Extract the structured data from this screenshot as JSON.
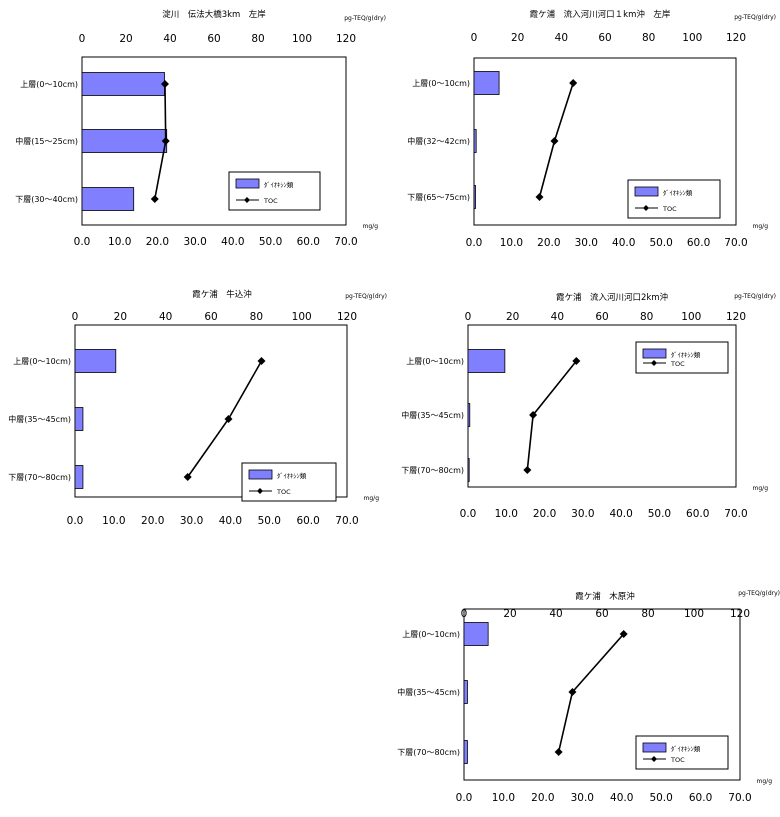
{
  "chart_data": [
    {
      "type": "bar",
      "title": "淀川　伝法大橋3km　左岸",
      "top_axis_unit": "pg-TEQ/g(dry)",
      "bottom_axis_unit": "mg/g",
      "top_axis_ticks": [
        "0",
        "20",
        "40",
        "60",
        "80",
        "100",
        "120"
      ],
      "bottom_axis_ticks": [
        "0.0",
        "10.0",
        "20.0",
        "30.0",
        "40.0",
        "50.0",
        "60.0",
        "70.0"
      ],
      "categories": [
        "上層(0〜10cm)",
        "中層(15〜25cm)",
        "下層(30〜40cm)"
      ],
      "series": [
        {
          "name": "ﾀﾞｲｵｷｼﾝ類",
          "kind": "bar",
          "axis": "top",
          "values": [
            37.5,
            38.5,
            23.5
          ]
        },
        {
          "name": "TOC",
          "kind": "line",
          "axis": "bottom",
          "values": [
            22.0,
            22.2,
            19.3
          ]
        }
      ],
      "xlim_top": [
        0,
        120
      ],
      "xlim_bottom": [
        0,
        70
      ],
      "legend_position": "lower-right",
      "bar_color": "#8080ff",
      "line_color": "#000000"
    },
    {
      "type": "bar",
      "title": "霞ケ浦　流入河川河口１km沖　左岸",
      "top_axis_unit": "pg-TEQ/g(dry)",
      "bottom_axis_unit": "mg/g",
      "top_axis_ticks": [
        "0",
        "20",
        "40",
        "60",
        "80",
        "100",
        "120"
      ],
      "bottom_axis_ticks": [
        "0.0",
        "10.0",
        "20.0",
        "30.0",
        "40.0",
        "50.0",
        "60.0",
        "70.0"
      ],
      "categories": [
        "上層(0〜10cm)",
        "中層(32〜42cm)",
        "下層(65〜75cm)"
      ],
      "series": [
        {
          "name": "ﾀﾞｲｵｷｼﾝ類",
          "kind": "bar",
          "axis": "top",
          "values": [
            11.5,
            1.0,
            0.7
          ]
        },
        {
          "name": "TOC",
          "kind": "line",
          "axis": "bottom",
          "values": [
            26.5,
            21.5,
            17.5
          ]
        }
      ],
      "xlim_top": [
        0,
        120
      ],
      "xlim_bottom": [
        0,
        70
      ],
      "legend_position": "lower-right",
      "bar_color": "#8080ff",
      "line_color": "#000000"
    },
    {
      "type": "bar",
      "title": "霞ケ浦　牛込沖",
      "top_axis_unit": "pg-TEQ/g(dry)",
      "bottom_axis_unit": "mg/g",
      "top_axis_ticks": [
        "0",
        "20",
        "40",
        "60",
        "80",
        "100",
        "120"
      ],
      "bottom_axis_ticks": [
        "0.0",
        "10.0",
        "20.0",
        "30.0",
        "40.0",
        "50.0",
        "60.0",
        "70.0"
      ],
      "categories": [
        "上層(0〜10cm)",
        "中層(35〜45cm)",
        "下層(70〜80cm)"
      ],
      "series": [
        {
          "name": "ﾀﾞｲｵｷｼﾝ類",
          "kind": "bar",
          "axis": "top",
          "values": [
            18.0,
            3.5,
            3.5
          ]
        },
        {
          "name": "TOC",
          "kind": "line",
          "axis": "bottom",
          "values": [
            48.0,
            39.5,
            29.0
          ]
        }
      ],
      "xlim_top": [
        0,
        120
      ],
      "xlim_bottom": [
        0,
        70
      ],
      "legend_position": "lower-right",
      "bar_color": "#8080ff",
      "line_color": "#000000"
    },
    {
      "type": "bar",
      "title": "霞ケ浦　流入河川河口2km沖",
      "top_axis_unit": "pg-TEQ/g(dry)",
      "bottom_axis_unit": "mg/g",
      "top_axis_ticks": [
        "0",
        "20",
        "40",
        "60",
        "80",
        "100",
        "120"
      ],
      "bottom_axis_ticks": [
        "0.0",
        "10.0",
        "20.0",
        "30.0",
        "40.0",
        "50.0",
        "60.0",
        "70.0"
      ],
      "categories": [
        "上層(0〜10cm)",
        "中層(35〜45cm)",
        "下層(70〜80cm)"
      ],
      "series": [
        {
          "name": "ﾀﾞｲｵｷｼﾝ類",
          "kind": "bar",
          "axis": "top",
          "values": [
            16.5,
            0.8,
            0.5
          ]
        },
        {
          "name": "TOC",
          "kind": "line",
          "axis": "bottom",
          "values": [
            28.3,
            17.0,
            15.5
          ]
        }
      ],
      "xlim_top": [
        0,
        120
      ],
      "xlim_bottom": [
        0,
        70
      ],
      "legend_position": "upper-right",
      "bar_color": "#8080ff",
      "line_color": "#000000"
    },
    {
      "type": "bar",
      "title": "霞ケ浦　木原沖",
      "top_axis_unit": "pg-TEQ/g(dry)",
      "bottom_axis_unit": "mg/g",
      "top_axis_ticks": [
        "0",
        "20",
        "40",
        "60",
        "80",
        "100",
        "120"
      ],
      "bottom_axis_ticks": [
        "0.0",
        "10.0",
        "20.0",
        "30.0",
        "40.0",
        "50.0",
        "60.0",
        "70.0"
      ],
      "categories": [
        "上層(0〜10cm)",
        "中層(35〜45cm)",
        "下層(70〜80cm)"
      ],
      "series": [
        {
          "name": "ﾀﾞｲｵｷｼﾝ類",
          "kind": "bar",
          "axis": "top",
          "values": [
            10.5,
            1.5,
            1.5
          ]
        },
        {
          "name": "TOC",
          "kind": "line",
          "axis": "bottom",
          "values": [
            40.5,
            27.5,
            24.0
          ]
        }
      ],
      "xlim_top": [
        0,
        120
      ],
      "xlim_bottom": [
        0,
        70
      ],
      "legend_position": "lower-right",
      "bar_color": "#8080ff",
      "line_color": "#000000"
    }
  ]
}
